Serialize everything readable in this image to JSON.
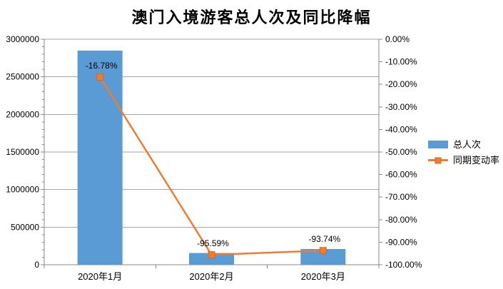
{
  "title": "澳门入境游客总人次及同比降幅",
  "colors": {
    "bar": "#5B9BD5",
    "line": "#ED7D31",
    "marker_border": "#D4681E",
    "grid": "#A6A6A6",
    "axis": "#898989",
    "text": "#000000",
    "background": "#FFFFFF"
  },
  "legend": {
    "position": "right",
    "items": [
      {
        "label": "总人次",
        "swatch": "bar-swatch"
      },
      {
        "label": "同期变动率",
        "swatch": "line-marker-swatch"
      }
    ]
  },
  "chart_data": {
    "type": "bar",
    "subtype": "combo-bar-line-dual-axis",
    "title": "澳门入境游客总人次及同比降幅",
    "categories": [
      "2020年1月",
      "2020年2月",
      "2020年3月"
    ],
    "series": [
      {
        "name": "总人次",
        "type": "bar",
        "axis": "left",
        "values": [
          2849000,
          156000,
          209000
        ]
      },
      {
        "name": "同期变动率",
        "type": "line",
        "axis": "right",
        "values": [
          -16.78,
          -95.59,
          -93.74
        ],
        "data_labels": [
          "-16.78%",
          "-95.59%",
          "-93.74%"
        ]
      }
    ],
    "left_axis": {
      "min": 0,
      "max": 3000000,
      "major_step": 500000,
      "minor_step": 100000,
      "tick_labels": [
        "3000000",
        "2500000",
        "2000000",
        "1500000",
        "1000000",
        "500000",
        "0"
      ]
    },
    "right_axis": {
      "min": -100,
      "max": 0,
      "major_step": 10,
      "tick_labels": [
        "0.00%",
        "-10.00%",
        "-20.00%",
        "-30.00%",
        "-40.00%",
        "-50.00%",
        "-60.00%",
        "-70.00%",
        "-80.00%",
        "-90.00%",
        "-100.00%"
      ]
    },
    "grid": true,
    "gridlines_follow": "left-axis-major",
    "legend_position": "right"
  }
}
